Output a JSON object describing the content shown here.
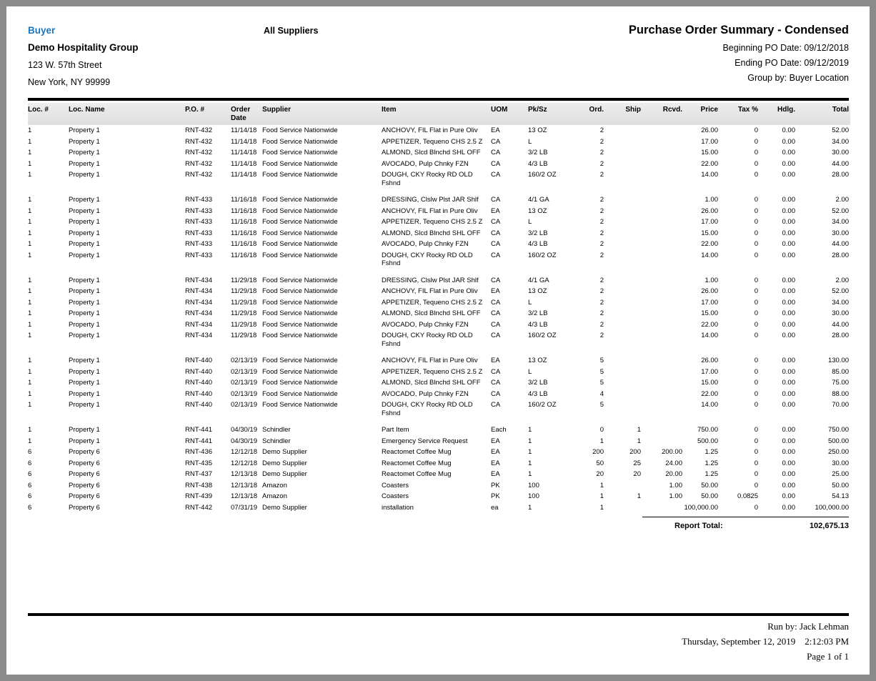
{
  "colors": {
    "buyer_accent": "#1B75BC"
  },
  "header": {
    "buyer_label": "Buyer",
    "company_name": "Demo Hospitality Group",
    "address_line1": "123 W. 57th Street",
    "address_line2": "New York, NY 99999",
    "supplier_filter": "All Suppliers",
    "report_title": "Purchase Order Summary - Condensed",
    "beginning_po_date": "Beginning PO Date: 09/12/2018",
    "ending_po_date": "Ending PO Date: 09/12/2019",
    "group_by": "Group by: Buyer Location"
  },
  "table": {
    "columns": [
      "Loc. #",
      "Loc. Name",
      "P.O. #",
      "Order Date",
      "Supplier",
      "Item",
      "UOM",
      "Pk/Sz",
      "Ord.",
      "Ship",
      "Rcvd.",
      "Price",
      "Tax %",
      "Hdlg.",
      "Total"
    ],
    "groups": [
      {
        "rows": [
          [
            "1",
            "Property 1",
            "RNT-432",
            "11/14/18",
            "Food Service Nationwide",
            "ANCHOVY, FIL Flat in Pure Oliv",
            "EA",
            "13 OZ",
            "2",
            "",
            "",
            "26.00",
            "0",
            "0.00",
            "52.00"
          ],
          [
            "1",
            "Property 1",
            "RNT-432",
            "11/14/18",
            "Food Service Nationwide",
            "APPETIZER, Tequeno CHS 2.5 Z",
            "CA",
            "L",
            "2",
            "",
            "",
            "17.00",
            "0",
            "0.00",
            "34.00"
          ],
          [
            "1",
            "Property 1",
            "RNT-432",
            "11/14/18",
            "Food Service Nationwide",
            "ALMOND, Slcd Blnchd SHL OFF",
            "CA",
            "3/2 LB",
            "2",
            "",
            "",
            "15.00",
            "0",
            "0.00",
            "30.00"
          ],
          [
            "1",
            "Property 1",
            "RNT-432",
            "11/14/18",
            "Food Service Nationwide",
            "AVOCADO, Pulp Chnky FZN",
            "CA",
            "4/3 LB",
            "2",
            "",
            "",
            "22.00",
            "0",
            "0.00",
            "44.00"
          ],
          [
            "1",
            "Property 1",
            "RNT-432",
            "11/14/18",
            "Food Service Nationwide",
            "DOUGH, CKY Rocky RD OLD\nFshnd",
            "CA",
            "160/2 OZ",
            "2",
            "",
            "",
            "14.00",
            "0",
            "0.00",
            "28.00"
          ]
        ]
      },
      {
        "rows": [
          [
            "1",
            "Property 1",
            "RNT-433",
            "11/16/18",
            "Food Service Nationwide",
            "DRESSING, Clslw Plst JAR Shlf",
            "CA",
            "4/1 GA",
            "2",
            "",
            "",
            "1.00",
            "0",
            "0.00",
            "2.00"
          ],
          [
            "1",
            "Property 1",
            "RNT-433",
            "11/16/18",
            "Food Service Nationwide",
            "ANCHOVY, FIL Flat in Pure Oliv",
            "EA",
            "13 OZ",
            "2",
            "",
            "",
            "26.00",
            "0",
            "0.00",
            "52.00"
          ],
          [
            "1",
            "Property 1",
            "RNT-433",
            "11/16/18",
            "Food Service Nationwide",
            "APPETIZER, Tequeno CHS 2.5 Z",
            "CA",
            "L",
            "2",
            "",
            "",
            "17.00",
            "0",
            "0.00",
            "34.00"
          ],
          [
            "1",
            "Property 1",
            "RNT-433",
            "11/16/18",
            "Food Service Nationwide",
            "ALMOND, Slcd Blnchd SHL OFF",
            "CA",
            "3/2 LB",
            "2",
            "",
            "",
            "15.00",
            "0",
            "0.00",
            "30.00"
          ],
          [
            "1",
            "Property 1",
            "RNT-433",
            "11/16/18",
            "Food Service Nationwide",
            "AVOCADO, Pulp Chnky FZN",
            "CA",
            "4/3 LB",
            "2",
            "",
            "",
            "22.00",
            "0",
            "0.00",
            "44.00"
          ],
          [
            "1",
            "Property 1",
            "RNT-433",
            "11/16/18",
            "Food Service Nationwide",
            "DOUGH, CKY Rocky RD OLD\nFshnd",
            "CA",
            "160/2 OZ",
            "2",
            "",
            "",
            "14.00",
            "0",
            "0.00",
            "28.00"
          ]
        ]
      },
      {
        "rows": [
          [
            "1",
            "Property 1",
            "RNT-434",
            "11/29/18",
            "Food Service Nationwide",
            "DRESSING, Clslw Plst JAR Shlf",
            "CA",
            "4/1 GA",
            "2",
            "",
            "",
            "1.00",
            "0",
            "0.00",
            "2.00"
          ],
          [
            "1",
            "Property 1",
            "RNT-434",
            "11/29/18",
            "Food Service Nationwide",
            "ANCHOVY, FIL Flat in Pure Oliv",
            "EA",
            "13 OZ",
            "2",
            "",
            "",
            "26.00",
            "0",
            "0.00",
            "52.00"
          ],
          [
            "1",
            "Property 1",
            "RNT-434",
            "11/29/18",
            "Food Service Nationwide",
            "APPETIZER, Tequeno CHS 2.5 Z",
            "CA",
            "L",
            "2",
            "",
            "",
            "17.00",
            "0",
            "0.00",
            "34.00"
          ],
          [
            "1",
            "Property 1",
            "RNT-434",
            "11/29/18",
            "Food Service Nationwide",
            "ALMOND, Slcd Blnchd SHL OFF",
            "CA",
            "3/2 LB",
            "2",
            "",
            "",
            "15.00",
            "0",
            "0.00",
            "30.00"
          ],
          [
            "1",
            "Property 1",
            "RNT-434",
            "11/29/18",
            "Food Service Nationwide",
            "AVOCADO, Pulp Chnky FZN",
            "CA",
            "4/3 LB",
            "2",
            "",
            "",
            "22.00",
            "0",
            "0.00",
            "44.00"
          ],
          [
            "1",
            "Property 1",
            "RNT-434",
            "11/29/18",
            "Food Service Nationwide",
            "DOUGH, CKY Rocky RD OLD\nFshnd",
            "CA",
            "160/2 OZ",
            "2",
            "",
            "",
            "14.00",
            "0",
            "0.00",
            "28.00"
          ]
        ]
      },
      {
        "rows": [
          [
            "1",
            "Property 1",
            "RNT-440",
            "02/13/19",
            "Food Service Nationwide",
            "ANCHOVY, FIL Flat in Pure Oliv",
            "EA",
            "13 OZ",
            "5",
            "",
            "",
            "26.00",
            "0",
            "0.00",
            "130.00"
          ],
          [
            "1",
            "Property 1",
            "RNT-440",
            "02/13/19",
            "Food Service Nationwide",
            "APPETIZER, Tequeno CHS 2.5 Z",
            "CA",
            "L",
            "5",
            "",
            "",
            "17.00",
            "0",
            "0.00",
            "85.00"
          ],
          [
            "1",
            "Property 1",
            "RNT-440",
            "02/13/19",
            "Food Service Nationwide",
            "ALMOND, Slcd Blnchd SHL OFF",
            "CA",
            "3/2 LB",
            "5",
            "",
            "",
            "15.00",
            "0",
            "0.00",
            "75.00"
          ],
          [
            "1",
            "Property 1",
            "RNT-440",
            "02/13/19",
            "Food Service Nationwide",
            "AVOCADO, Pulp Chnky FZN",
            "CA",
            "4/3 LB",
            "4",
            "",
            "",
            "22.00",
            "0",
            "0.00",
            "88.00"
          ],
          [
            "1",
            "Property 1",
            "RNT-440",
            "02/13/19",
            "Food Service Nationwide",
            "DOUGH, CKY Rocky RD OLD\nFshnd",
            "CA",
            "160/2 OZ",
            "5",
            "",
            "",
            "14.00",
            "0",
            "0.00",
            "70.00"
          ]
        ]
      },
      {
        "rows": [
          [
            "1",
            "Property 1",
            "RNT-441",
            "04/30/19",
            "Schindler",
            "Part Item",
            "Each",
            "1",
            "0",
            "1",
            "",
            "750.00",
            "0",
            "0.00",
            "750.00"
          ],
          [
            "1",
            "Property 1",
            "RNT-441",
            "04/30/19",
            "Schindler",
            "Emergency Service Request",
            "EA",
            "1",
            "1",
            "1",
            "",
            "500.00",
            "0",
            "0.00",
            "500.00"
          ],
          [
            "6",
            "Property 6",
            "RNT-436",
            "12/12/18",
            "Demo Supplier",
            "Reactomet Coffee Mug",
            "EA",
            "1",
            "200",
            "200",
            "200.00",
            "1.25",
            "0",
            "0.00",
            "250.00"
          ],
          [
            "6",
            "Property 6",
            "RNT-435",
            "12/12/18",
            "Demo Supplier",
            "Reactomet Coffee Mug",
            "EA",
            "1",
            "50",
            "25",
            "24.00",
            "1.25",
            "0",
            "0.00",
            "30.00"
          ],
          [
            "6",
            "Property 6",
            "RNT-437",
            "12/13/18",
            "Demo Supplier",
            "Reactomet Coffee Mug",
            "EA",
            "1",
            "20",
            "20",
            "20.00",
            "1.25",
            "0",
            "0.00",
            "25.00"
          ],
          [
            "6",
            "Property 6",
            "RNT-438",
            "12/13/18",
            "Amazon",
            "Coasters",
            "PK",
            "100",
            "1",
            "",
            "1.00",
            "50.00",
            "0",
            "0.00",
            "50.00"
          ],
          [
            "6",
            "Property 6",
            "RNT-439",
            "12/13/18",
            "Amazon",
            "Coasters",
            "PK",
            "100",
            "1",
            "1",
            "1.00",
            "50.00",
            "0.0825",
            "0.00",
            "54.13"
          ],
          [
            "6",
            "Property 6",
            "RNT-442",
            "07/31/19",
            "Demo Supplier",
            "installation",
            "ea",
            "1",
            "1",
            "",
            "",
            "100,000.00",
            "0",
            "0.00",
            "100,000.00"
          ]
        ]
      }
    ],
    "report_total_label": "Report Total:",
    "report_total_value": "102,675.13"
  },
  "footer": {
    "run_by": "Run by: Jack Lehman",
    "run_date": "Thursday, September 12, 2019",
    "run_time": "2:12:03 PM",
    "page": "Page 1 of 1"
  }
}
